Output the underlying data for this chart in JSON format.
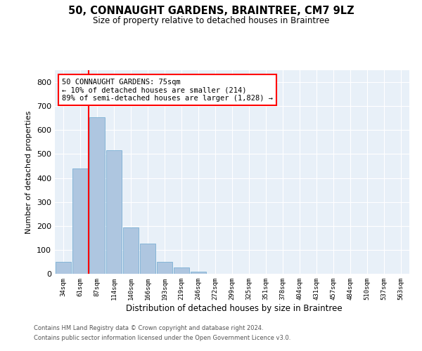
{
  "title1": "50, CONNAUGHT GARDENS, BRAINTREE, CM7 9LZ",
  "title2": "Size of property relative to detached houses in Braintree",
  "xlabel": "Distribution of detached houses by size in Braintree",
  "ylabel": "Number of detached properties",
  "bar_labels": [
    "34sqm",
    "61sqm",
    "87sqm",
    "114sqm",
    "140sqm",
    "166sqm",
    "193sqm",
    "219sqm",
    "246sqm",
    "272sqm",
    "299sqm",
    "325sqm",
    "351sqm",
    "378sqm",
    "404sqm",
    "431sqm",
    "457sqm",
    "484sqm",
    "510sqm",
    "537sqm",
    "563sqm"
  ],
  "bar_values": [
    50,
    440,
    655,
    515,
    193,
    125,
    50,
    25,
    10,
    0,
    0,
    0,
    0,
    0,
    0,
    0,
    0,
    0,
    0,
    0,
    0
  ],
  "bar_color": "#aec6e0",
  "bar_edge_color": "#7aafd4",
  "vline_color": "red",
  "vline_x": 1.52,
  "annotation_text": "50 CONNAUGHT GARDENS: 75sqm\n← 10% of detached houses are smaller (214)\n89% of semi-detached houses are larger (1,828) →",
  "annotation_box_color": "white",
  "annotation_box_edge_color": "red",
  "ylim": [
    0,
    850
  ],
  "yticks": [
    0,
    100,
    200,
    300,
    400,
    500,
    600,
    700,
    800
  ],
  "background_color": "#e8f0f8",
  "grid_color": "white",
  "footnote1": "Contains HM Land Registry data © Crown copyright and database right 2024.",
  "footnote2": "Contains public sector information licensed under the Open Government Licence v3.0."
}
